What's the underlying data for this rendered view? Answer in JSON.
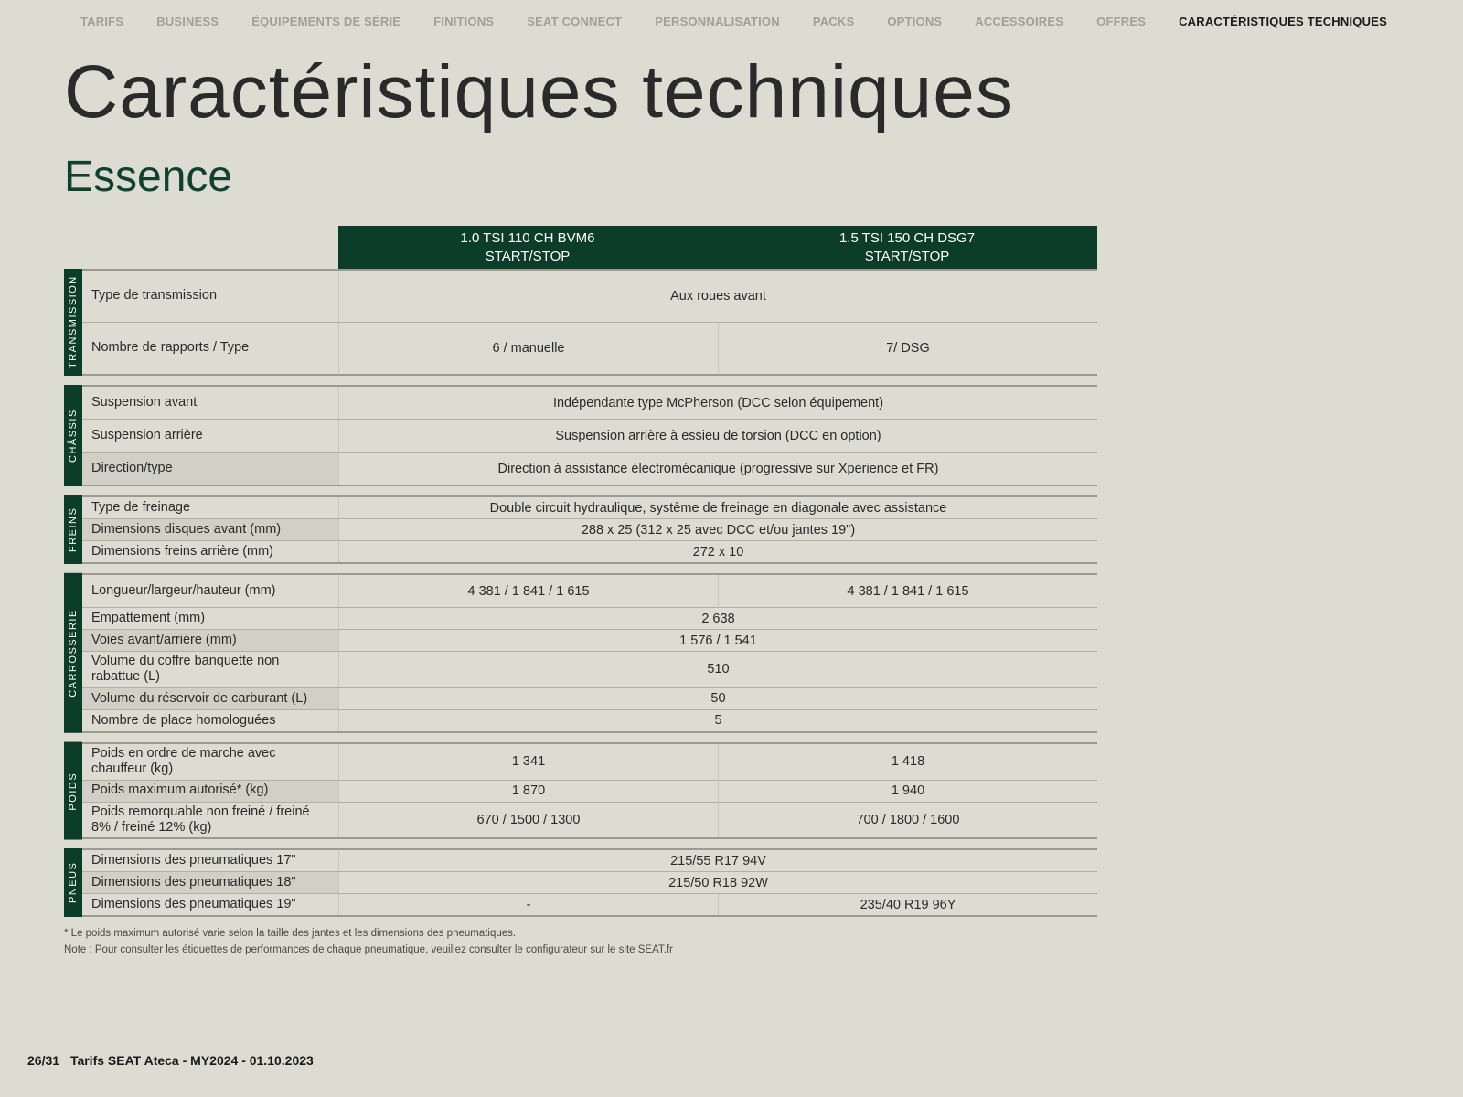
{
  "nav": {
    "items": [
      {
        "label": "TARIFS",
        "active": false
      },
      {
        "label": "BUSINESS",
        "active": false
      },
      {
        "label": "ÉQUIPEMENTS DE SÉRIE",
        "active": false
      },
      {
        "label": "FINITIONS",
        "active": false
      },
      {
        "label": "SEAT CONNECT",
        "active": false
      },
      {
        "label": "PERSONNALISATION",
        "active": false
      },
      {
        "label": "PACKS",
        "active": false
      },
      {
        "label": "OPTIONS",
        "active": false
      },
      {
        "label": "ACCESSOIRES",
        "active": false
      },
      {
        "label": "OFFRES",
        "active": false
      },
      {
        "label": "CARACTÉRISTIQUES TECHNIQUES",
        "active": true
      }
    ]
  },
  "title": "Caractéristiques techniques",
  "subtitle": "Essence",
  "columns": [
    {
      "line1": "1.0 TSI 110 CH BVM6",
      "line2": "START/STOP"
    },
    {
      "line1": "1.5 TSI 150 CH DSG7",
      "line2": "START/STOP"
    }
  ],
  "groups": [
    {
      "label": "TRANSMISSION",
      "rowHeight": "tall",
      "rows": [
        {
          "label": "Type de transmission",
          "values": [
            "Aux roues avant"
          ],
          "span": true
        },
        {
          "label": "Nombre de rapports / Type",
          "values": [
            "6 / manuelle",
            "7/ DSG"
          ]
        }
      ]
    },
    {
      "label": "CHÂSSIS",
      "rowHeight": "medium",
      "rows": [
        {
          "label": "Suspension avant",
          "values": [
            "Indépendante type McPherson (DCC selon équipement)"
          ],
          "span": true
        },
        {
          "label": "Suspension arrière",
          "values": [
            "Suspension arrière à essieu de torsion (DCC en option)"
          ],
          "span": true
        },
        {
          "label": "Direction/type",
          "values": [
            "Direction à assistance électromécanique (progressive sur Xperience et FR)"
          ],
          "span": true,
          "alt": true
        }
      ]
    },
    {
      "label": "FREINS",
      "rowHeight": "compact",
      "rows": [
        {
          "label": "Type de freinage",
          "values": [
            "Double circuit hydraulique, système de freinage en diagonale avec assistance"
          ],
          "span": true
        },
        {
          "label": "Dimensions disques avant (mm)",
          "values": [
            "288 x 25 (312 x 25 avec DCC et/ou jantes 19\")"
          ],
          "span": true,
          "alt": true
        },
        {
          "label": "Dimensions freins arrière (mm)",
          "values": [
            "272 x 10"
          ],
          "span": true
        }
      ]
    },
    {
      "label": "CARROSSERIE",
      "rowHeight": "compact",
      "rows": [
        {
          "label": "Longueur/largeur/hauteur (mm)",
          "values": [
            "4 381 / 1 841 / 1 615",
            "4 381 / 1 841 / 1 615"
          ],
          "height": "medium"
        },
        {
          "label": "Empattement (mm)",
          "values": [
            "2 638"
          ],
          "span": true
        },
        {
          "label": "Voies avant/arrière (mm)",
          "values": [
            "1 576 / 1 541"
          ],
          "span": true,
          "alt": true
        },
        {
          "label": "Volume du coffre banquette non rabattue (L)",
          "values": [
            "510"
          ],
          "span": true
        },
        {
          "label": "Volume du réservoir de carburant (L)",
          "values": [
            "50"
          ],
          "span": true,
          "alt": true
        },
        {
          "label": "Nombre de place homologuées",
          "values": [
            "5"
          ],
          "span": true
        }
      ]
    },
    {
      "label": "POIDS",
      "rowHeight": "compact",
      "rows": [
        {
          "label": "Poids en ordre de marche avec chauffeur (kg)",
          "values": [
            "1 341",
            "1 418"
          ]
        },
        {
          "label": "Poids maximum autorisé* (kg)",
          "values": [
            "1 870",
            "1 940"
          ],
          "alt": true
        },
        {
          "label": "Poids remorquable non freiné / freiné 8% / freiné 12% (kg)",
          "values": [
            "670 / 1500 / 1300",
            "700 / 1800 / 1600"
          ]
        }
      ]
    },
    {
      "label": "PNEUS",
      "rowHeight": "compact",
      "rows": [
        {
          "label": "Dimensions des pneumatiques 17\"",
          "values": [
            "215/55 R17 94V"
          ],
          "span": true
        },
        {
          "label": "Dimensions des pneumatiques 18\"",
          "values": [
            "215/50 R18 92W"
          ],
          "span": true,
          "alt": true
        },
        {
          "label": "Dimensions des pneumatiques 19\"",
          "values": [
            "-",
            "235/40 R19 96Y"
          ]
        }
      ]
    }
  ],
  "footnotes": [
    "* Le poids maximum autorisé varie selon la taille des jantes et les dimensions des pneumatiques.",
    "Note : Pour consulter les étiquettes de performances de chaque pneumatique, veuillez consulter le configurateur sur le site SEAT.fr"
  ],
  "footer": {
    "page": "26/31",
    "doc": "Tarifs SEAT Ateca - MY2024 - 01.10.2023"
  },
  "colors": {
    "background": "#dcdcd2",
    "header_bg": "#0c3d2a",
    "header_text": "#ffffff",
    "text": "#2a2a2a",
    "nav_inactive": "#a0a098",
    "subtitle": "#10412f",
    "border": "#b0b0a6"
  }
}
